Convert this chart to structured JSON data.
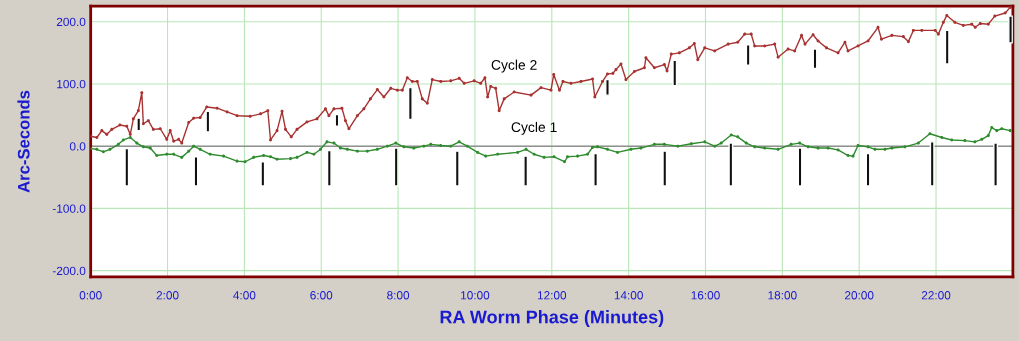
{
  "chart_data": {
    "type": "line",
    "xlabel": "RA Worm Phase (Minutes)",
    "ylabel": "Arc-Seconds",
    "xlim": [
      0,
      24
    ],
    "ylim": [
      -210,
      225
    ],
    "xticks": [
      {
        "value": 0,
        "label": "0:00"
      },
      {
        "value": 2,
        "label": "2:00"
      },
      {
        "value": 4,
        "label": "4:00"
      },
      {
        "value": 6,
        "label": "6:00"
      },
      {
        "value": 8,
        "label": "8:00"
      },
      {
        "value": 10,
        "label": "10:00"
      },
      {
        "value": 12,
        "label": "12:00"
      },
      {
        "value": 14,
        "label": "14:00"
      },
      {
        "value": 16,
        "label": "16:00"
      },
      {
        "value": 18,
        "label": "18:00"
      },
      {
        "value": 20,
        "label": "20:00"
      },
      {
        "value": 22,
        "label": "22:00"
      }
    ],
    "yticks": [
      {
        "value": -200,
        "label": "-200.0"
      },
      {
        "value": -100,
        "label": "-100.0"
      },
      {
        "value": 0,
        "label": "0.0"
      },
      {
        "value": 100,
        "label": "100.0"
      },
      {
        "value": 200,
        "label": "200.0"
      }
    ],
    "grid": true,
    "legend": false,
    "marker": "circle",
    "line_style": "solid",
    "ref_lines": [
      {
        "axis": "y",
        "value": 0,
        "color": "#909090"
      }
    ],
    "series": [
      {
        "name": "Cycle 2",
        "color": "#a83232",
        "x": [
          0.0,
          0.16,
          0.29,
          0.42,
          0.55,
          0.76,
          0.94,
          1.03,
          1.11,
          1.24,
          1.33,
          1.37,
          1.5,
          1.63,
          1.81,
          1.98,
          2.07,
          2.16,
          2.29,
          2.37,
          2.55,
          2.68,
          2.85,
          3.02,
          3.29,
          3.55,
          3.81,
          4.15,
          4.42,
          4.61,
          4.68,
          4.85,
          4.98,
          5.07,
          5.22,
          5.37,
          5.63,
          5.89,
          6.11,
          6.2,
          6.33,
          6.54,
          6.63,
          6.72,
          6.94,
          7.11,
          7.28,
          7.46,
          7.63,
          7.81,
          7.98,
          8.11,
          8.24,
          8.37,
          8.5,
          8.63,
          8.76,
          8.89,
          9.11,
          9.37,
          9.59,
          9.72,
          9.98,
          10.15,
          10.26,
          10.33,
          10.41,
          10.54,
          10.63,
          10.76,
          11.02,
          11.46,
          11.72,
          11.98,
          12.05,
          12.2,
          12.29,
          12.5,
          12.76,
          13.06,
          13.12,
          13.32,
          13.45,
          13.59,
          13.67,
          13.8,
          13.93,
          14.15,
          14.41,
          14.45,
          14.67,
          14.93,
          15.0,
          15.11,
          15.32,
          15.58,
          15.71,
          15.8,
          15.98,
          16.24,
          16.59,
          16.84,
          17.02,
          17.19,
          17.28,
          17.54,
          17.8,
          17.89,
          18.15,
          18.32,
          18.5,
          18.59,
          18.8,
          18.93,
          19.15,
          19.45,
          19.63,
          19.71,
          19.97,
          20.23,
          20.49,
          20.58,
          20.85,
          21.15,
          21.28,
          21.41,
          21.63,
          21.98,
          22.06,
          22.19,
          22.28,
          22.49,
          22.71,
          22.93,
          23.02,
          23.15,
          23.36,
          23.53,
          23.8,
          23.93
        ],
        "values": [
          16,
          14,
          25,
          19,
          27,
          34,
          32,
          19,
          44,
          57,
          86,
          36,
          41,
          27,
          28,
          11,
          25,
          8,
          11,
          5,
          38,
          45,
          46,
          63,
          61,
          55,
          49,
          48,
          52,
          57,
          10,
          25,
          56,
          27,
          15,
          27,
          39,
          44,
          60,
          49,
          60,
          61,
          41,
          28,
          49,
          60,
          76,
          91,
          79,
          93,
          90,
          90,
          110,
          104,
          104,
          76,
          69,
          107,
          104,
          105,
          109,
          101,
          105,
          101,
          110,
          79,
          96,
          93,
          57,
          76,
          87,
          82,
          94,
          90,
          115,
          90,
          104,
          101,
          104,
          108,
          79,
          104,
          116,
          117,
          123,
          132,
          107,
          120,
          126,
          142,
          126,
          131,
          121,
          148,
          150,
          158,
          165,
          139,
          158,
          153,
          164,
          167,
          180,
          180,
          161,
          161,
          164,
          143,
          156,
          153,
          178,
          164,
          179,
          169,
          158,
          150,
          167,
          153,
          161,
          169,
          191,
          172,
          178,
          176,
          168,
          186,
          186,
          186,
          180,
          199,
          210,
          199,
          194,
          196,
          191,
          197,
          196,
          209,
          214,
          223
        ]
      },
      {
        "name": "Cycle 1",
        "color": "#2e8b2e",
        "x": [
          0.0,
          0.16,
          0.33,
          0.5,
          0.72,
          0.85,
          1.03,
          1.2,
          1.37,
          1.55,
          1.72,
          1.98,
          2.16,
          2.37,
          2.55,
          2.68,
          2.85,
          3.11,
          3.46,
          3.81,
          4.02,
          4.24,
          4.5,
          4.68,
          4.85,
          5.2,
          5.37,
          5.63,
          5.81,
          5.98,
          6.15,
          6.33,
          6.5,
          6.68,
          6.94,
          7.2,
          7.46,
          7.72,
          7.94,
          8.15,
          8.41,
          8.67,
          8.85,
          9.11,
          9.37,
          9.59,
          9.8,
          10.07,
          10.28,
          10.59,
          11.11,
          11.33,
          11.54,
          11.8,
          12.06,
          12.33,
          12.41,
          12.67,
          12.93,
          13.06,
          13.19,
          13.45,
          13.71,
          14.06,
          14.32,
          14.67,
          14.93,
          15.28,
          15.63,
          15.98,
          16.24,
          16.41,
          16.67,
          16.84,
          17.06,
          17.28,
          17.54,
          17.89,
          18.23,
          18.45,
          18.67,
          18.93,
          19.19,
          19.45,
          19.71,
          19.84,
          19.97,
          20.23,
          20.41,
          20.67,
          20.85,
          21.19,
          21.54,
          21.84,
          22.15,
          22.41,
          22.75,
          23.01,
          23.19,
          23.36,
          23.45,
          23.58,
          23.71,
          23.93
        ],
        "values": [
          -4,
          -5,
          -9,
          -5,
          3,
          10,
          14,
          5,
          -1,
          -3,
          -15,
          -13,
          -13,
          -18,
          -8,
          0,
          -5,
          -13,
          -16,
          -24,
          -25,
          -18,
          -15,
          -17,
          -21,
          -20,
          -18,
          -10,
          -13,
          -5,
          7,
          5,
          -3,
          -5,
          -8,
          -8,
          -5,
          0,
          5,
          -1,
          -3,
          0,
          3,
          1,
          0,
          7,
          0,
          -10,
          -16,
          -13,
          -10,
          -5,
          -13,
          -18,
          -17,
          -25,
          -17,
          -16,
          -13,
          -2,
          -1,
          -5,
          -10,
          -5,
          -3,
          3,
          3,
          0,
          4,
          7,
          0,
          5,
          18,
          15,
          5,
          -1,
          -3,
          -5,
          3,
          5,
          -1,
          -3,
          -3,
          -6,
          -15,
          -16,
          1,
          -1,
          -5,
          -5,
          -3,
          -1,
          5,
          20,
          14,
          10,
          9,
          7,
          11,
          17,
          30,
          25,
          28,
          25
        ]
      },
      {
        "type": "bar",
        "color": "#101010",
        "x": [
          0.94,
          2.74,
          4.48,
          6.21,
          7.95,
          9.54,
          11.32,
          13.14,
          14.94,
          16.66,
          18.46,
          20.23,
          21.9,
          23.55
        ],
        "base": [
          -64,
          -64,
          -64,
          -64,
          -64,
          -64,
          -64,
          -64,
          -64,
          -64,
          -64,
          -64,
          -64,
          -64
        ],
        "values": [
          60,
          47,
          39,
          57,
          61,
          56,
          48,
          52,
          56,
          69,
          61,
          52,
          71,
          69
        ]
      },
      {
        "type": "bar",
        "color": "#101010",
        "x": [
          1.25,
          3.05,
          6.41,
          8.32,
          13.45,
          15.2,
          17.11,
          18.85,
          22.29,
          23.94
        ],
        "base": [
          25,
          23,
          32,
          43,
          82,
          97,
          130,
          125,
          132,
          166
        ],
        "values": [
          20,
          33,
          19,
          51,
          25,
          41,
          33,
          31,
          54,
          43
        ]
      }
    ]
  }
}
